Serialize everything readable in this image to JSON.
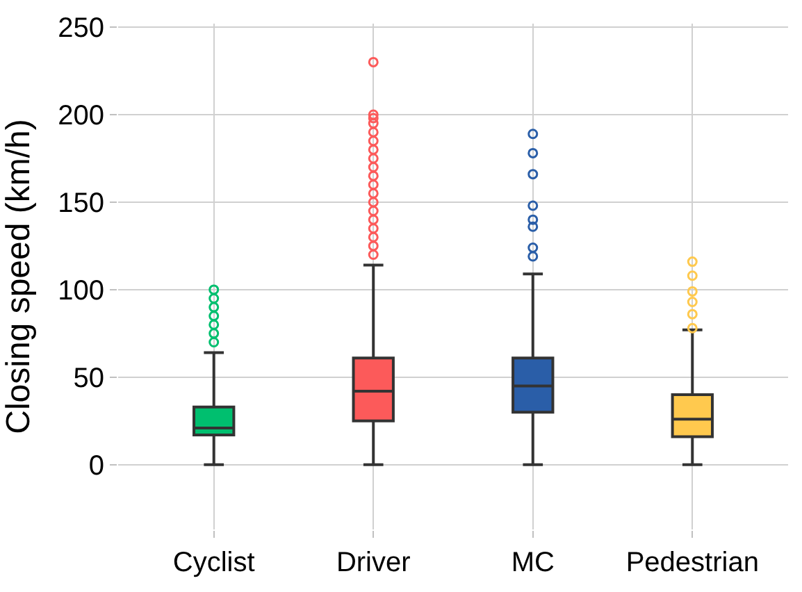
{
  "chart_data": {
    "type": "box",
    "ylabel": "Closing speed (km/h)",
    "categories": [
      "Cyclist",
      "Driver",
      "MC",
      "Pedestrian"
    ],
    "colors": [
      "#00bf6f",
      "#fc5a5a",
      "#2a5ea8",
      "#ffc94e"
    ],
    "boxes": [
      {
        "low": 0,
        "q1": 17,
        "median": 21,
        "q3": 33,
        "high": 64,
        "outliers": [
          70,
          75,
          80,
          85,
          90,
          95,
          100
        ]
      },
      {
        "low": 0,
        "q1": 25,
        "median": 42,
        "q3": 61,
        "high": 114,
        "outliers": [
          120,
          125,
          130,
          135,
          140,
          145,
          150,
          155,
          160,
          165,
          170,
          175,
          180,
          185,
          190,
          195,
          198,
          200,
          230
        ]
      },
      {
        "low": 0,
        "q1": 30,
        "median": 45,
        "q3": 61,
        "high": 109,
        "outliers": [
          119,
          124,
          136,
          140,
          148,
          166,
          178,
          189
        ]
      },
      {
        "low": 0,
        "q1": 16,
        "median": 26,
        "q3": 40,
        "high": 77,
        "outliers": [
          78,
          86,
          93,
          99,
          108,
          116
        ]
      }
    ],
    "ylim": [
      -37,
      252
    ],
    "yticks": [
      0,
      50,
      100,
      150,
      200,
      250
    ],
    "grid": true
  }
}
